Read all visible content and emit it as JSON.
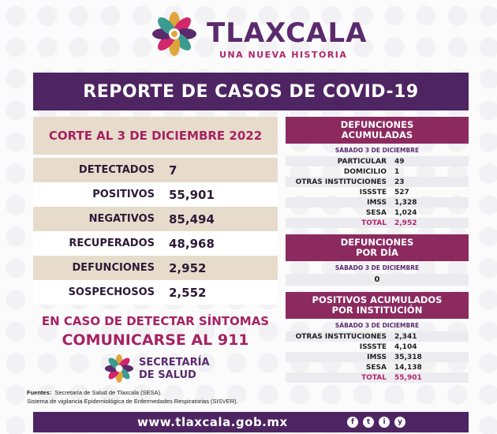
{
  "header": {
    "brand": "TLAXCALA",
    "tagline": "UNA NUEVA HISTORIA"
  },
  "banner": {
    "title": "REPORTE DE CASOS DE COVID-19"
  },
  "corte": {
    "label": "CORTE AL 3 DE DICIEMBRE 2022"
  },
  "stats": [
    {
      "label": "DETECTADOS",
      "value": "7"
    },
    {
      "label": "POSITIVOS",
      "value": "55,901"
    },
    {
      "label": "NEGATIVOS",
      "value": "85,494"
    },
    {
      "label": "RECUPERADOS",
      "value": "48,968"
    },
    {
      "label": "DEFUNCIONES",
      "value": "2,952"
    },
    {
      "label": "SOSPECHOSOS",
      "value": "2,552"
    }
  ],
  "alert": {
    "line1": "EN CASO DE DETECTAR SÍNTOMAS",
    "line2": "COMUNICARSE AL 911"
  },
  "secretaria": {
    "line1": "SECRETARÍA",
    "line2": "DE SALUD"
  },
  "fuentes": {
    "prefix": "Fuentes:",
    "line1": "Secretaría de Salud de Tlaxcala (SESA).",
    "line2": "Sistema de vigilancia Epidemiológica de Enfermedades Respiratorias (SISVER)."
  },
  "defunciones_acumuladas": {
    "title_1": "DEFUNCIONES",
    "title_2": "ACUMULADAS",
    "date": "SÁBADO 3 DE DICIEMBRE",
    "rows": [
      {
        "label": "PARTICULAR",
        "value": "49"
      },
      {
        "label": "DOMICILIO",
        "value": "1"
      },
      {
        "label": "OTRAS INSTITUCIONES",
        "value": "23"
      },
      {
        "label": "ISSSTE",
        "value": "527"
      },
      {
        "label": "IMSS",
        "value": "1,328"
      },
      {
        "label": "SESA",
        "value": "1,024"
      },
      {
        "label": "TOTAL",
        "value": "2,952"
      }
    ]
  },
  "defunciones_dia": {
    "title_1": "DEFUNCIONES",
    "title_2": "POR DÍA",
    "date": "SÁBADO 3 DE DICIEMBRE",
    "value": "0"
  },
  "positivos_institucion": {
    "title_1": "POSITIVOS ACUMULADOS",
    "title_2": "POR INSTITUCIÓN",
    "date": "SÁBADO 3 DE DICIEMBRE",
    "rows": [
      {
        "label": "OTRAS INSTITUCIONES",
        "value": "2,341"
      },
      {
        "label": "ISSSTE",
        "value": "4,104"
      },
      {
        "label": "IMSS",
        "value": "35,318"
      },
      {
        "label": "SESA",
        "value": "14,138"
      },
      {
        "label": "TOTAL",
        "value": "55,901"
      }
    ]
  },
  "footer": {
    "url": "www.tlaxcala.gob.mx",
    "social": [
      "f",
      "t",
      "i",
      "y"
    ],
    "social_icons": [
      "facebook-icon",
      "twitter-icon",
      "instagram-icon",
      "youtube-icon"
    ]
  },
  "colors": {
    "purple": "#4e2562",
    "magenta": "#a62262",
    "plum": "#8c2a5f",
    "beige": "#e7dccb"
  }
}
